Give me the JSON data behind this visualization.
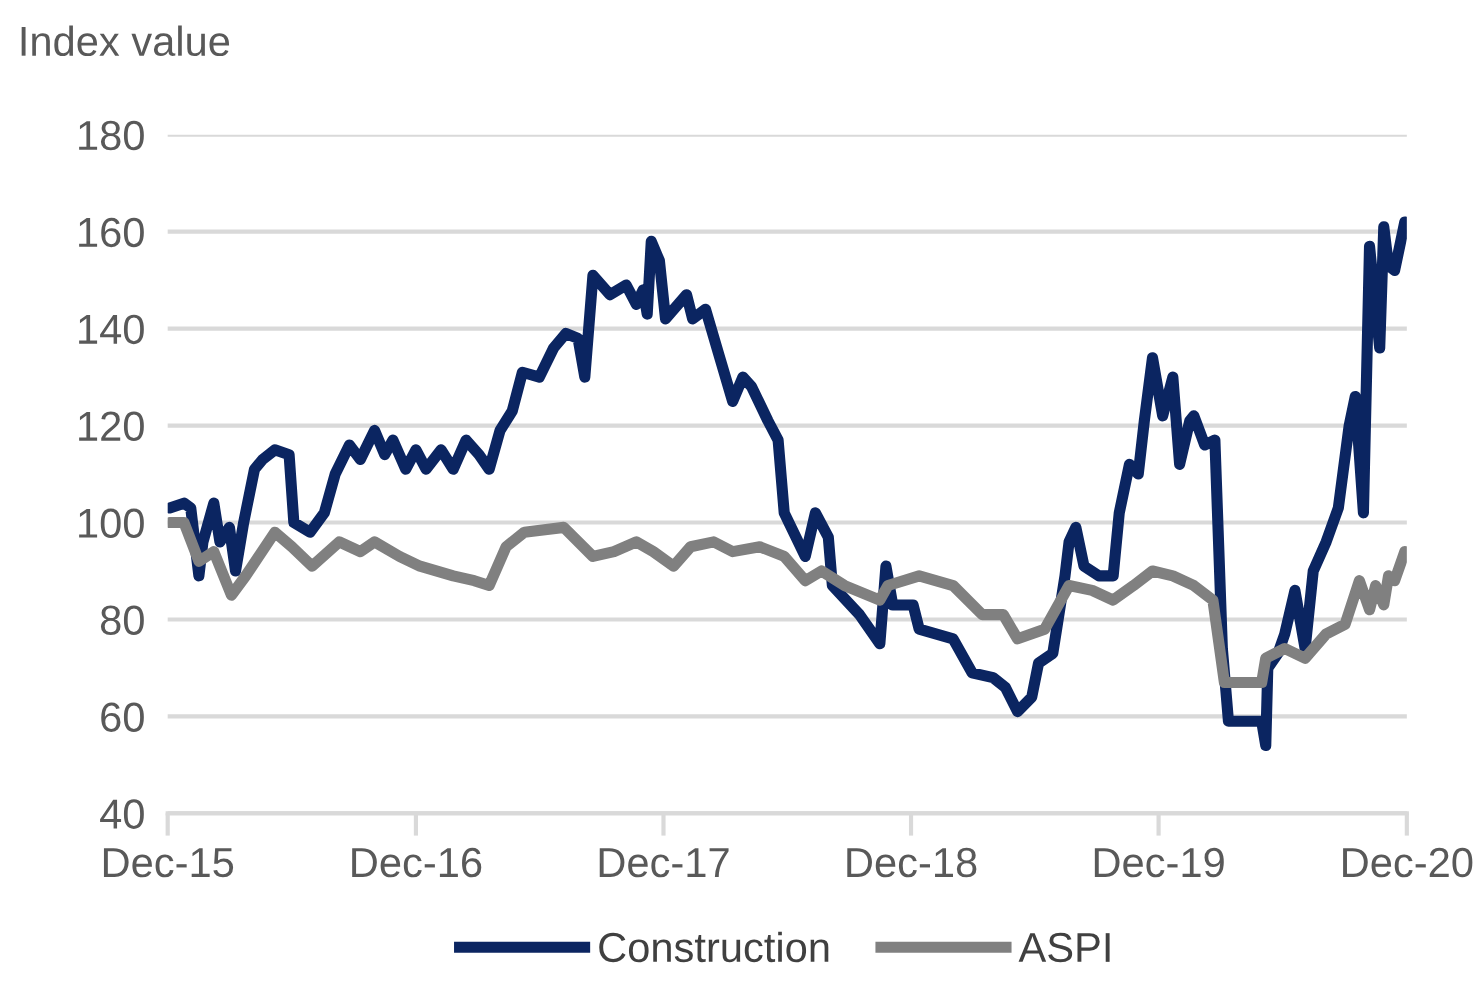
{
  "chart_data": {
    "type": "line",
    "ylabel": "Index value",
    "xlim": [
      "2015-12-01",
      "2020-12-01"
    ],
    "xticks": [
      {
        "value": "2015-12-01",
        "label": "Dec-15"
      },
      {
        "value": "2016-12-01",
        "label": "Dec-16"
      },
      {
        "value": "2017-12-01",
        "label": "Dec-17"
      },
      {
        "value": "2018-12-01",
        "label": "Dec-18"
      },
      {
        "value": "2019-12-01",
        "label": "Dec-19"
      },
      {
        "value": "2020-12-01",
        "label": "Dec-20"
      }
    ],
    "ylim": [
      40,
      180
    ],
    "yticks": [
      40,
      60,
      80,
      100,
      120,
      140,
      160,
      180
    ],
    "grid": "y",
    "legend": "bottom",
    "line_style": "solid",
    "marker": "none",
    "series": [
      {
        "name": "Construction",
        "color": "#0b2561",
        "x": [
          "2015-12-04",
          "2015-12-25",
          "2016-01-04",
          "2016-01-16",
          "2016-01-22",
          "2016-02-07",
          "2016-02-16",
          "2016-03-01",
          "2016-03-10",
          "2016-03-22",
          "2016-04-07",
          "2016-04-19",
          "2016-05-07",
          "2016-05-28",
          "2016-06-04",
          "2016-06-28",
          "2016-07-19",
          "2016-08-04",
          "2016-08-25",
          "2016-09-10",
          "2016-10-01",
          "2016-10-16",
          "2016-10-28",
          "2016-11-16",
          "2016-12-01",
          "2016-12-16",
          "2017-01-07",
          "2017-01-25",
          "2017-02-13",
          "2017-03-04",
          "2017-03-19",
          "2017-04-04",
          "2017-04-22",
          "2017-05-07",
          "2017-06-01",
          "2017-06-22",
          "2017-07-10",
          "2017-07-28",
          "2017-08-07",
          "2017-08-19",
          "2017-09-13",
          "2017-10-07",
          "2017-10-22",
          "2017-11-01",
          "2017-11-07",
          "2017-11-13",
          "2017-11-25",
          "2017-12-04",
          "2018-01-04",
          "2018-01-13",
          "2018-02-01",
          "2018-02-22",
          "2018-03-13",
          "2018-03-28",
          "2018-04-10",
          "2018-05-04",
          "2018-05-19",
          "2018-05-28",
          "2018-06-28",
          "2018-07-13",
          "2018-08-01",
          "2018-08-07",
          "2018-09-16",
          "2018-10-16",
          "2018-10-25",
          "2018-11-04",
          "2018-12-04",
          "2018-12-13",
          "2019-02-01",
          "2019-03-01",
          "2019-04-01",
          "2019-04-19",
          "2019-05-07",
          "2019-05-28",
          "2019-06-07",
          "2019-06-28",
          "2019-07-16",
          "2019-07-22",
          "2019-08-01",
          "2019-08-13",
          "2019-09-04",
          "2019-09-25",
          "2019-10-04",
          "2019-10-19",
          "2019-11-01",
          "2019-11-10",
          "2019-11-22",
          "2019-12-07",
          "2019-12-22",
          "2020-01-01",
          "2020-01-16",
          "2020-01-22",
          "2020-02-07",
          "2020-02-22",
          "2020-03-04",
          "2020-03-13",
          "2020-05-01",
          "2020-05-07",
          "2020-05-10",
          "2020-05-25",
          "2020-06-04",
          "2020-06-19",
          "2020-07-04",
          "2020-07-16",
          "2020-08-04",
          "2020-08-22",
          "2020-09-07",
          "2020-09-16",
          "2020-09-28",
          "2020-10-07",
          "2020-10-22",
          "2020-10-28",
          "2020-11-04",
          "2020-11-13",
          "2020-11-28"
        ],
        "values": [
          103,
          104,
          103,
          89,
          96,
          104,
          96,
          99,
          90,
          100,
          111,
          113,
          115,
          114,
          100,
          98,
          102,
          110,
          116,
          113,
          119,
          114,
          117,
          111,
          115,
          111,
          115,
          111,
          117,
          114,
          111,
          119,
          123,
          131,
          130,
          136,
          139,
          138,
          130,
          151,
          147,
          149,
          145,
          148,
          143,
          158,
          154,
          142,
          147,
          142,
          144,
          134,
          125,
          130,
          128,
          121,
          117,
          102,
          93,
          102,
          97,
          87,
          81,
          75,
          91,
          83,
          83,
          78,
          76,
          69,
          68,
          66,
          61,
          64,
          71,
          73,
          89,
          96,
          99,
          91,
          89,
          89,
          102,
          112,
          110,
          121,
          134,
          122,
          130,
          112,
          121,
          122,
          116,
          117,
          74,
          59,
          59,
          54,
          70,
          73,
          77,
          86,
          74,
          90,
          96,
          103,
          120,
          126,
          102,
          157,
          136,
          161,
          153,
          152,
          162
        ]
      },
      {
        "name": "ASPI",
        "color": "#808080",
        "x": [
          "2015-12-04",
          "2015-12-25",
          "2016-01-16",
          "2016-02-07",
          "2016-03-04",
          "2016-03-25",
          "2016-05-07",
          "2016-06-01",
          "2016-07-01",
          "2016-08-10",
          "2016-09-10",
          "2016-10-01",
          "2016-11-07",
          "2016-12-07",
          "2017-01-25",
          "2017-02-25",
          "2017-03-19",
          "2017-04-13",
          "2017-05-10",
          "2017-07-07",
          "2017-08-19",
          "2017-09-19",
          "2017-10-22",
          "2017-11-16",
          "2017-12-16",
          "2018-01-10",
          "2018-02-13",
          "2018-03-13",
          "2018-04-22",
          "2018-05-28",
          "2018-06-28",
          "2018-07-22",
          "2018-08-25",
          "2018-10-16",
          "2018-10-28",
          "2018-12-13",
          "2019-02-01",
          "2019-03-16",
          "2019-04-16",
          "2019-05-07",
          "2019-06-16",
          "2019-07-22",
          "2019-08-25",
          "2019-09-25",
          "2019-10-25",
          "2019-11-22",
          "2019-12-22",
          "2020-01-22",
          "2020-02-19",
          "2020-03-07",
          "2020-05-01",
          "2020-05-07",
          "2020-06-04",
          "2020-07-04",
          "2020-08-04",
          "2020-09-01",
          "2020-09-22",
          "2020-10-07",
          "2020-10-16",
          "2020-10-28",
          "2020-11-04",
          "2020-11-13",
          "2020-11-28"
        ],
        "values": [
          100,
          100,
          92,
          94,
          85,
          89,
          98,
          95,
          91,
          96,
          94,
          96,
          93,
          91,
          89,
          88,
          87,
          95,
          98,
          99,
          93,
          94,
          96,
          94,
          91,
          95,
          96,
          94,
          95,
          93,
          88,
          90,
          87,
          84,
          87,
          89,
          87,
          81,
          81,
          76,
          78,
          87,
          86,
          84,
          87,
          90,
          89,
          87,
          84,
          67,
          67,
          72,
          74,
          72,
          77,
          79,
          88,
          82,
          87,
          83,
          89,
          88,
          94
        ]
      }
    ]
  }
}
